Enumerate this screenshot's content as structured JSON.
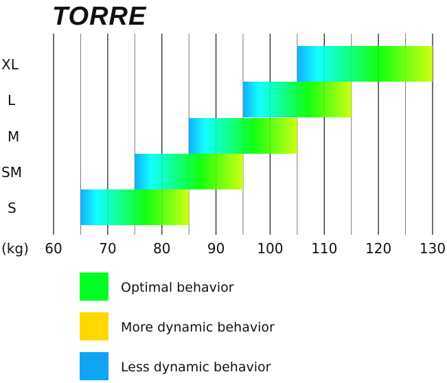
{
  "chart_data": {
    "type": "bar",
    "title": "TORRE",
    "xlabel": "(kg)",
    "x_ticks": [
      60,
      70,
      80,
      90,
      100,
      110,
      120,
      130
    ],
    "xlim": [
      60,
      130
    ],
    "grid": "vertical lines every 5 kg",
    "categories": [
      "S",
      "SM",
      "M",
      "L",
      "XL"
    ],
    "ranges": [
      {
        "size": "S",
        "min": 65,
        "max": 85
      },
      {
        "size": "SM",
        "min": 75,
        "max": 95
      },
      {
        "size": "M",
        "min": 85,
        "max": 105
      },
      {
        "size": "L",
        "min": 95,
        "max": 115
      },
      {
        "size": "XL",
        "min": 105,
        "max": 130
      }
    ],
    "gradient_colors": [
      "#00a8ff",
      "#00ffff",
      "#00ff00",
      "#ccff00"
    ],
    "legend": [
      {
        "label": "Optimal behavior",
        "color": "#00ff22"
      },
      {
        "label": "More dynamic behavior",
        "color": "#ffd800"
      },
      {
        "label": "Less dynamic behavior",
        "color": "#12a4f4"
      }
    ],
    "legend_placement": "bottom"
  }
}
